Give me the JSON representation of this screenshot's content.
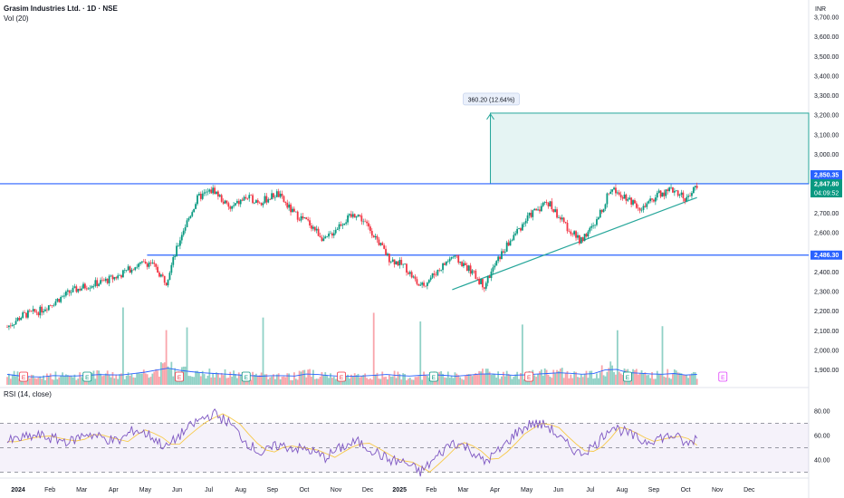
{
  "header": {
    "title": "Grasim Industries Ltd. · 1D · NSE",
    "vol_label": "Vol (20)",
    "currency": "INR"
  },
  "rsi": {
    "label": "RSI (14, close)",
    "axis": [
      {
        "v": 80,
        "label": "80.00"
      },
      {
        "v": 60,
        "label": "60.00"
      },
      {
        "v": 40,
        "label": "40.00"
      }
    ],
    "upper_band": 70,
    "mid_band": 50,
    "lower_band": 30
  },
  "price_axis": [
    {
      "v": 3700,
      "label": "3,700.00"
    },
    {
      "v": 3600,
      "label": "3,600.00"
    },
    {
      "v": 3500,
      "label": "3,500.00"
    },
    {
      "v": 3400,
      "label": "3,400.00"
    },
    {
      "v": 3300,
      "label": "3,300.00"
    },
    {
      "v": 3200,
      "label": "3,200.00"
    },
    {
      "v": 3100,
      "label": "3,100.00"
    },
    {
      "v": 3000,
      "label": "3,000.00"
    },
    {
      "v": 2700,
      "label": "2,700.00"
    },
    {
      "v": 2600,
      "label": "2,600.00"
    },
    {
      "v": 2400,
      "label": "2,400.00"
    },
    {
      "v": 2300,
      "label": "2,300.00"
    },
    {
      "v": 2200,
      "label": "2,200.00"
    },
    {
      "v": 2100,
      "label": "2,100.00"
    },
    {
      "v": 2000,
      "label": "2,000.00"
    },
    {
      "v": 1900,
      "label": "1,900.00"
    }
  ],
  "price_tags": [
    {
      "v": 2850.35,
      "label": "2,850.35",
      "color": "#2962ff"
    },
    {
      "v": 2847.8,
      "label": "2,847.80",
      "color": "#089981"
    },
    {
      "v": 2486.3,
      "label": "2,486.30",
      "color": "#2962ff"
    }
  ],
  "countdown": "04:09:52",
  "time_axis": [
    {
      "label": "2024",
      "x": 0,
      "bold": true
    },
    {
      "label": "Feb",
      "x": 1
    },
    {
      "label": "Mar",
      "x": 2
    },
    {
      "label": "Apr",
      "x": 3
    },
    {
      "label": "May",
      "x": 4
    },
    {
      "label": "Jun",
      "x": 5
    },
    {
      "label": "Jul",
      "x": 6
    },
    {
      "label": "Aug",
      "x": 7
    },
    {
      "label": "Sep",
      "x": 8
    },
    {
      "label": "Oct",
      "x": 9
    },
    {
      "label": "Nov",
      "x": 10
    },
    {
      "label": "Dec",
      "x": 11
    },
    {
      "label": "2025",
      "x": 12,
      "bold": true
    },
    {
      "label": "Feb",
      "x": 13
    },
    {
      "label": "Mar",
      "x": 14
    },
    {
      "label": "Apr",
      "x": 15
    },
    {
      "label": "May",
      "x": 16
    },
    {
      "label": "Jun",
      "x": 17
    },
    {
      "label": "Jul",
      "x": 18
    },
    {
      "label": "Aug",
      "x": 19
    },
    {
      "label": "Sep",
      "x": 20
    },
    {
      "label": "Oct",
      "x": 21
    },
    {
      "label": "Nov",
      "x": 22
    },
    {
      "label": "Dec",
      "x": 23
    }
  ],
  "measure": {
    "label": "360.20 (12.64%)",
    "from": 2850.35,
    "to": 3210.55
  },
  "horizontal_levels": [
    2850.35,
    2486.3
  ],
  "trendline": {
    "from": [
      14.0,
      2310
    ],
    "to": [
      21.7,
      2780
    ]
  },
  "earnings_markers": [
    0.5,
    2.5,
    5.4,
    7.5,
    10.5,
    13.4,
    16.4,
    19.5,
    22.5
  ],
  "colors": {
    "up": "#089981",
    "down": "#f23645",
    "level": "#2962ff",
    "measure": "#26a69a",
    "rsi": "#7e57c2",
    "rsi_ma": "#f7c948",
    "volume_ma": "#2962ff"
  },
  "chart_data": {
    "type": "candlestick",
    "x": [
      0,
      0.5,
      1,
      1.5,
      2,
      2.5,
      3,
      3.5,
      4,
      4.5,
      5,
      5.5,
      6,
      6.5,
      7,
      7.5,
      8,
      8.5,
      9,
      9.5,
      10,
      10.5,
      11,
      11.5,
      12,
      12.5,
      13,
      13.5,
      14,
      14.5,
      15,
      15.5,
      16,
      16.5,
      17,
      17.5,
      18,
      18.5,
      19,
      19.5,
      20,
      20.5,
      21,
      21.4,
      21.7
    ],
    "close": [
      2120,
      2180,
      2200,
      2250,
      2300,
      2330,
      2350,
      2380,
      2430,
      2450,
      2350,
      2600,
      2780,
      2820,
      2720,
      2780,
      2760,
      2800,
      2700,
      2650,
      2560,
      2650,
      2700,
      2600,
      2470,
      2430,
      2320,
      2400,
      2480,
      2420,
      2330,
      2480,
      2600,
      2700,
      2760,
      2650,
      2560,
      2640,
      2830,
      2780,
      2720,
      2800,
      2820,
      2770,
      2848
    ],
    "rsi": [
      55,
      58,
      60,
      57,
      55,
      62,
      58,
      55,
      65,
      60,
      50,
      62,
      72,
      78,
      70,
      55,
      45,
      52,
      50,
      48,
      42,
      50,
      55,
      48,
      40,
      38,
      30,
      42,
      55,
      50,
      38,
      48,
      62,
      70,
      68,
      55,
      45,
      52,
      68,
      62,
      55,
      58,
      60,
      52,
      59
    ],
    "volume": [
      0.55,
      0.45,
      0.4,
      0.5,
      0.45,
      0.5,
      0.55,
      0.5,
      0.6,
      0.7,
      0.9,
      0.75,
      0.65,
      0.6,
      0.55,
      0.5,
      0.45,
      0.5,
      0.45,
      0.6,
      0.5,
      0.45,
      0.45,
      0.5,
      0.55,
      0.45,
      0.5,
      0.55,
      0.45,
      0.5,
      0.6,
      0.55,
      0.5,
      0.55,
      0.6,
      0.65,
      0.55,
      0.6,
      0.9,
      0.65,
      0.6,
      0.55,
      0.6,
      0.5,
      0.55
    ]
  }
}
